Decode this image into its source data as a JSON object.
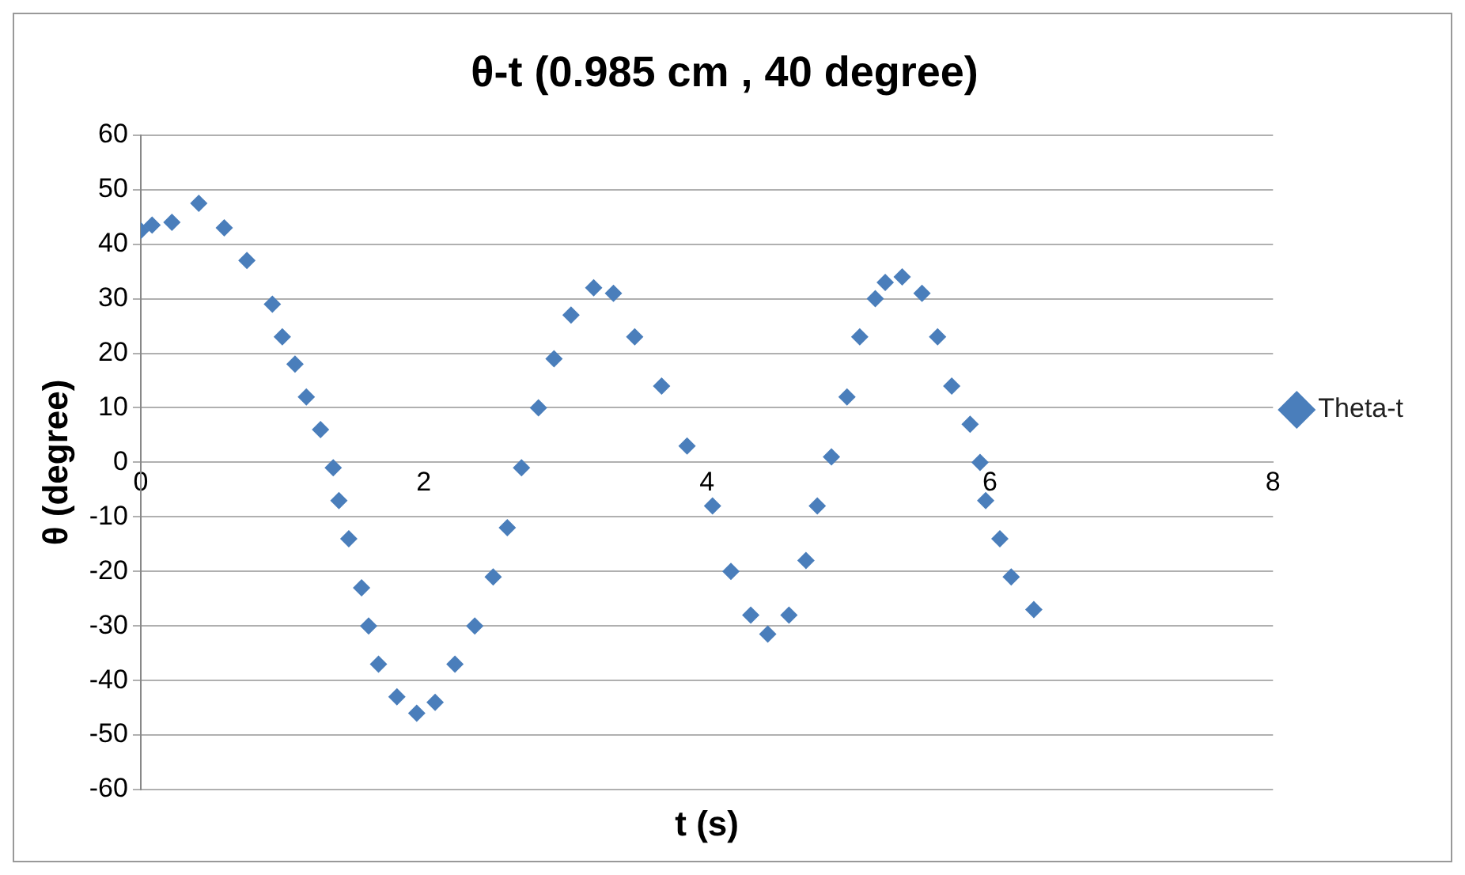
{
  "chart_data": {
    "type": "scatter",
    "title": "θ-t (0.985 cm , 40 degree)",
    "xlabel": "t (s)",
    "ylabel": "θ (degree)",
    "xlim": [
      0,
      8
    ],
    "xticks": [
      0,
      2,
      4,
      6,
      8
    ],
    "ylim": [
      -60,
      60
    ],
    "yticks": [
      -60,
      -50,
      -40,
      -30,
      -20,
      -10,
      0,
      10,
      20,
      30,
      40,
      50,
      60
    ],
    "grid": "y",
    "legend": "right",
    "marker": "diamond",
    "x": [
      0,
      0.08,
      0.22,
      0.41,
      0.59,
      0.75,
      0.93,
      1.0,
      1.09,
      1.17,
      1.27,
      1.36,
      1.4,
      1.47,
      1.56,
      1.61,
      1.68,
      1.81,
      1.95,
      2.08,
      2.22,
      2.36,
      2.49,
      2.59,
      2.69,
      2.81,
      2.92,
      3.04,
      3.2,
      3.34,
      3.49,
      3.68,
      3.86,
      4.04,
      4.17,
      4.31,
      4.43,
      4.58,
      4.7,
      4.78,
      4.88,
      4.99,
      5.08,
      5.19,
      5.26,
      5.38,
      5.52,
      5.63,
      5.73,
      5.86,
      5.93,
      5.97,
      6.07,
      6.15,
      6.31
    ],
    "series": [
      {
        "name": "Theta-t",
        "color": "#4a7ebb",
        "values": [
          42.5,
          43.5,
          44,
          47.5,
          43,
          37,
          29,
          23,
          18,
          12,
          6,
          -1,
          -7,
          -14,
          -23,
          -30,
          -37,
          -43,
          -46,
          -44,
          -37,
          -30,
          -21,
          -12,
          -1,
          10,
          19,
          27,
          32,
          31,
          23,
          14,
          3,
          -8,
          -20,
          -28,
          -31.5,
          -28,
          -18,
          -8,
          1,
          12,
          23,
          30,
          33,
          34,
          31,
          23,
          14,
          7,
          0,
          -7,
          -14,
          -21,
          -27
        ]
      }
    ]
  }
}
